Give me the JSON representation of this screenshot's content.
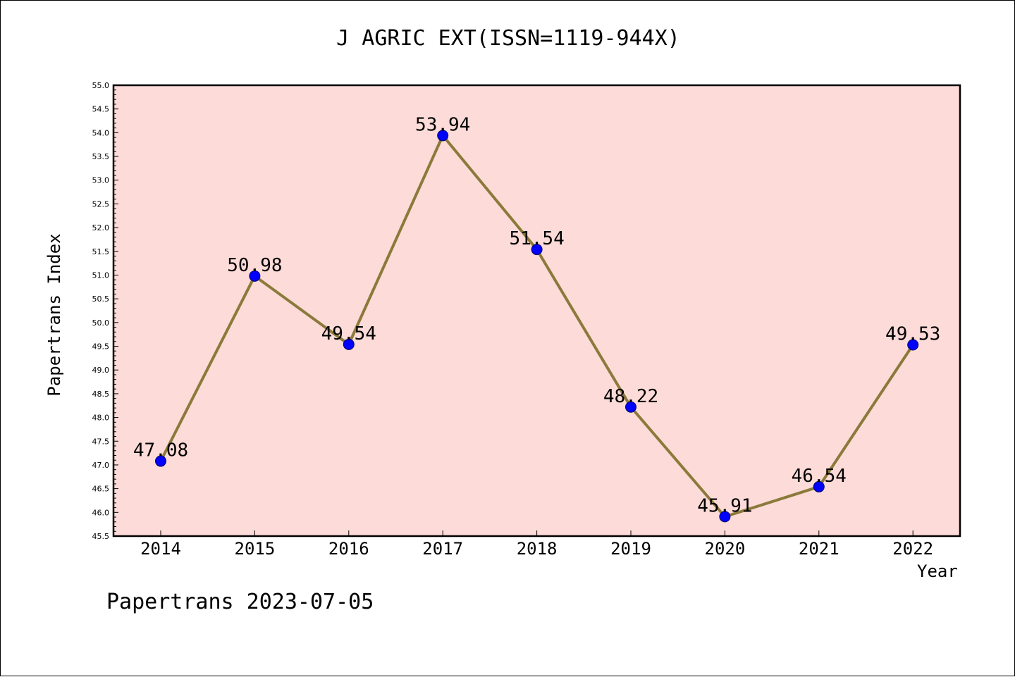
{
  "title": "J AGRIC EXT(ISSN=1119-944X)",
  "footer": "Papertrans 2023-07-05",
  "colors": {
    "plot_background": "#fddbd8",
    "line": "#8b7a3a",
    "marker": "#0000ff",
    "axis": "#000000"
  },
  "chart_data": {
    "type": "line",
    "title": "J AGRIC EXT(ISSN=1119-944X)",
    "xlabel": "Year",
    "ylabel": "Papertrans Index",
    "categories": [
      "2014",
      "2015",
      "2016",
      "2017",
      "2018",
      "2019",
      "2020",
      "2021",
      "2022"
    ],
    "series": [
      {
        "values": [
          47.08,
          50.98,
          49.54,
          53.94,
          51.54,
          48.22,
          45.91,
          46.54,
          49.53
        ],
        "labels": [
          "47.08",
          "50.98",
          "49.54",
          "53.94",
          "51.54",
          "48.22",
          "45.91",
          "46.54",
          "49.53"
        ]
      }
    ],
    "ylim": [
      45.5,
      55.0
    ],
    "ytick_step": 0.5,
    "yticks": [
      "45.5",
      "46.0",
      "46.5",
      "47.0",
      "47.5",
      "48.0",
      "48.5",
      "49.0",
      "49.5",
      "50.0",
      "50.5",
      "51.0",
      "51.5",
      "52.0",
      "52.5",
      "53.0",
      "53.5",
      "54.0",
      "54.5",
      "55.0"
    ],
    "grid": false,
    "legend": "none"
  }
}
